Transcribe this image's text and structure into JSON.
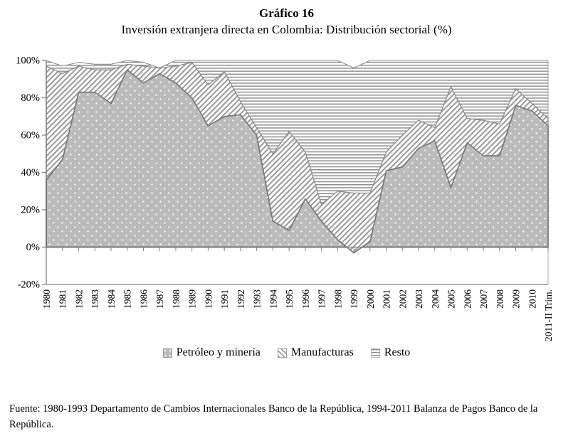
{
  "title": "Gráfico 16",
  "subtitle": "Inversión extranjera directa en Colombia: Distribución sectorial (%)",
  "source_note": "Fuente: 1980-1993 Departamento de Cambios Internacionales Banco de la República, 1994-2011 Balanza de Pagos Banco de la República.",
  "colors": {
    "background": "#ffffff",
    "area_fill": "#bbbbbb",
    "dot": "#ffffff",
    "hatch_line": "#9b9b9b",
    "rule_line": "#8d8d8d",
    "series_border_petroleo": "#666666",
    "series_border_manufacturas": "#7d7d7d",
    "series_border_resto": "#8f8f8f",
    "axis": "#808080",
    "text": "#000000"
  },
  "chart_data": {
    "type": "area",
    "stacked": true,
    "grid": false,
    "legend_position": "bottom",
    "title": "Gráfico 16",
    "subtitle": "Inversión extranjera directa en Colombia: Distribución sectorial (%)",
    "xlabel": "",
    "ylabel": "",
    "ylim": [
      -20,
      100
    ],
    "ytick_step": 20,
    "ytick_labels": [
      "100%",
      "80%",
      "60%",
      "40%",
      "20%",
      "0%",
      "-20%"
    ],
    "categories": [
      "1980",
      "1981",
      "1982",
      "1983",
      "1984",
      "1985",
      "1986",
      "1987",
      "1988",
      "1989",
      "1990",
      "1991",
      "1992",
      "1993",
      "1994",
      "1995",
      "1996",
      "1997",
      "1998",
      "1999",
      "2000",
      "2001",
      "2002",
      "2003",
      "2004",
      "2005",
      "2006",
      "2007",
      "2008",
      "2009",
      "2010",
      "2011-II Trim."
    ],
    "series": [
      {
        "name": "Petróleo y minería",
        "pattern": "dots",
        "values": [
          36,
          47,
          83,
          83,
          77,
          95,
          88,
          93,
          88,
          80,
          65,
          70,
          71,
          60,
          14,
          9,
          26,
          14,
          4,
          -3,
          3,
          41,
          43,
          53,
          57,
          32,
          56,
          49,
          49,
          76,
          73,
          65
        ]
      },
      {
        "name": "Manufacturas",
        "pattern": "diagonal-hatch",
        "values": [
          61,
          46,
          14,
          12,
          18,
          3,
          9,
          3,
          9,
          19,
          22,
          24,
          7,
          4,
          36,
          53,
          25,
          9,
          26,
          32,
          26,
          10,
          17,
          15,
          7,
          54,
          13,
          19,
          17,
          9,
          4,
          4
        ]
      },
      {
        "name": "Resto",
        "pattern": "horizontal-lines",
        "values": [
          3,
          4,
          2,
          3,
          3,
          2,
          2,
          0,
          3,
          1,
          13,
          6,
          22,
          36,
          50,
          38,
          49,
          77,
          70,
          67,
          71,
          49,
          40,
          32,
          36,
          14,
          31,
          32,
          34,
          15,
          23,
          31
        ]
      }
    ]
  }
}
